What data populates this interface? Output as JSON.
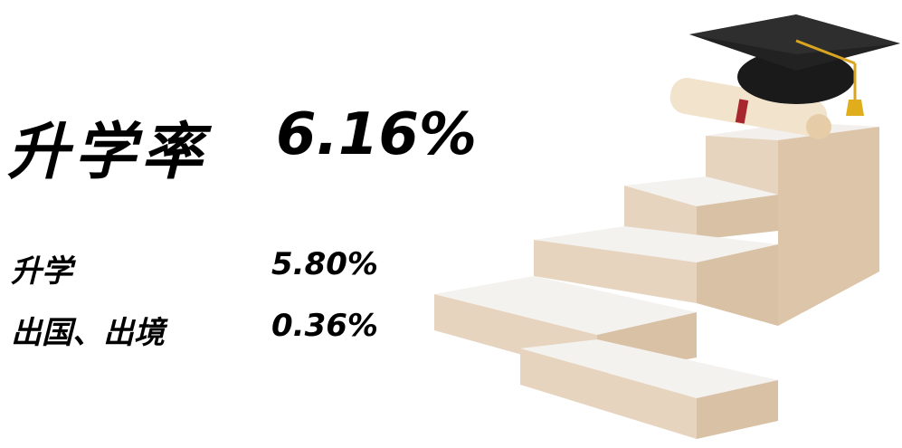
{
  "headline": {
    "label": "升学率",
    "value": "6.16%"
  },
  "items": [
    {
      "label": "升学",
      "value": "5.80%"
    },
    {
      "label": "出国、出境",
      "value": "0.36%"
    }
  ]
}
